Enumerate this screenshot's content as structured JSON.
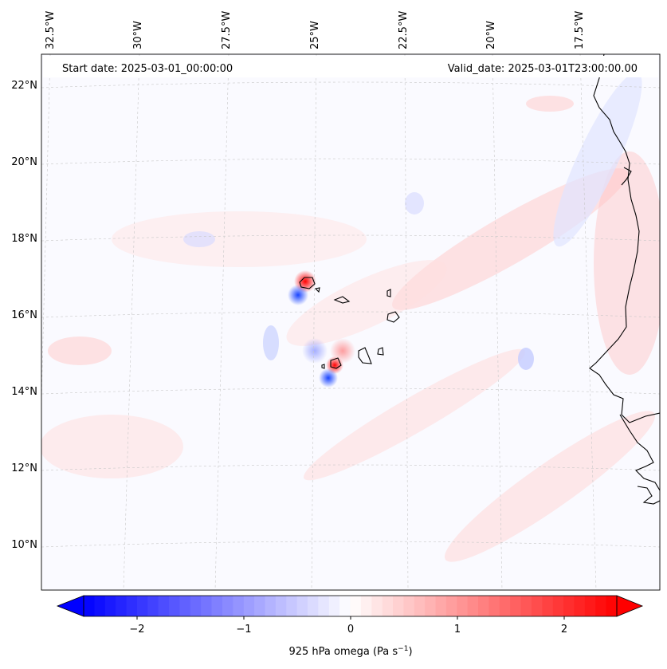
{
  "map": {
    "start_label": "Start date: 2025-03-01_00:00:00",
    "valid_label": "Valid_date: 2025-03-01T23:00:00.00",
    "lon_labels": [
      "32.5°W",
      "30°W",
      "27.5°W",
      "25°W",
      "22.5°W",
      "20°W",
      "17.5°W"
    ],
    "lat_labels": [
      "22°N",
      "20°N",
      "18°N",
      "16°N",
      "14°N",
      "12°N",
      "10°N"
    ],
    "grid_lines": true
  },
  "colorbar": {
    "label": "925 hPa omega (Pa s",
    "label_exp": "−1",
    "label_close": ")",
    "ticks": [
      "−2",
      "−1",
      "0",
      "1",
      "2"
    ],
    "min": -2.6,
    "max": 2.6,
    "colors": {
      "low": "#0000ff",
      "mid": "#ffffff",
      "high": "#ff0000"
    }
  }
}
